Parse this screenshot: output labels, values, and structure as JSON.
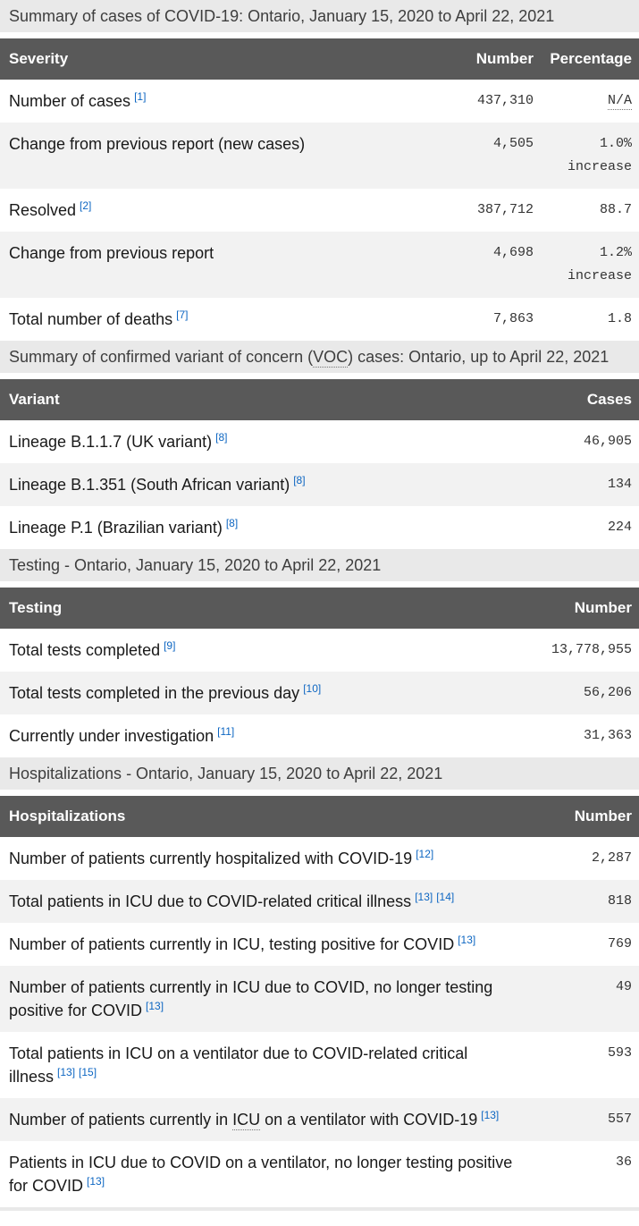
{
  "colors": {
    "header_bg": "#595959",
    "link_blue": "#0d66c2",
    "caption_bg": "#e9e9e9",
    "row_stripe_bg": "#f2f2f2"
  },
  "cases": {
    "caption": "Summary of cases of COVID-19: Ontario, January 15, 2020 to April 22, 2021",
    "columns": [
      "Severity",
      "Number",
      "Percentage"
    ],
    "rows": [
      {
        "label": "Number of cases",
        "fn1": "[1]",
        "number": "437,310",
        "pct": "N/A"
      },
      {
        "label": "Change from previous report (new cases)",
        "number": "4,505",
        "pct": "1.0%",
        "pct2": "increase"
      },
      {
        "label": "Resolved",
        "fn1": "[2]",
        "number": "387,712",
        "pct": "88.7"
      },
      {
        "label": "Change from previous report",
        "number": "4,698",
        "pct": "1.2%",
        "pct2": "increase"
      },
      {
        "label": "Total number of deaths",
        "fn1": "[7]",
        "number": "7,863",
        "pct": "1.8"
      }
    ]
  },
  "variants": {
    "caption_pre": "Summary of confirmed variant of concern (",
    "caption_abbr": "VOC",
    "caption_post": ") cases: Ontario, up to April 22, 2021",
    "columns": [
      "Variant",
      "Cases"
    ],
    "rows": [
      {
        "label": "Lineage B.1.1.7 (UK variant)",
        "fn1": "[8]",
        "number": "46,905"
      },
      {
        "label": "Lineage B.1.351 (South African variant)",
        "fn1": "[8]",
        "number": "134"
      },
      {
        "label": "Lineage P.1 (Brazilian variant)",
        "fn1": "[8]",
        "number": "224"
      }
    ]
  },
  "testing": {
    "caption": "Testing - Ontario, January 15, 2020 to April 22, 2021",
    "columns": [
      "Testing",
      "Number"
    ],
    "rows": [
      {
        "label": "Total tests completed",
        "fn1": "[9]",
        "number": "13,778,955"
      },
      {
        "label": "Total tests completed in the previous day",
        "fn1": "[10]",
        "number": "56,206"
      },
      {
        "label": "Currently under investigation",
        "fn1": "[11]",
        "number": "31,363"
      }
    ]
  },
  "hosp": {
    "caption": "Hospitalizations - Ontario, January 15, 2020 to April 22, 2021",
    "columns": [
      "Hospitalizations",
      "Number"
    ],
    "rows": [
      {
        "label": "Number of patients currently hospitalized with COVID-19",
        "fn1": "[12]",
        "number": "2,287"
      },
      {
        "label": "Total patients in ICU due to COVID-related critical illness",
        "fn1": "[13]",
        "fn2": "[14]",
        "number": "818"
      },
      {
        "label": "Number of patients currently in ICU, testing positive for COVID",
        "fn1": "[13]",
        "number": "769"
      },
      {
        "label": "Number of patients currently in ICU due to COVID, no longer testing positive for COVID",
        "fn1": "[13]",
        "number": "49"
      },
      {
        "label": "Total patients in ICU on a ventilator due to COVID-related critical illness",
        "fn1": "[13]",
        "fn2": "[15]",
        "number": "593"
      },
      {
        "label_pre": "Number of patients currently in ",
        "label_abbr": "ICU",
        "label_post": " on a ventilator with COVID-19",
        "fn1": "[13]",
        "number": "557"
      },
      {
        "label": "Patients in ICU due to COVID on a ventilator, no longer testing positive for COVID",
        "fn1": "[13]",
        "number": "36"
      }
    ]
  }
}
